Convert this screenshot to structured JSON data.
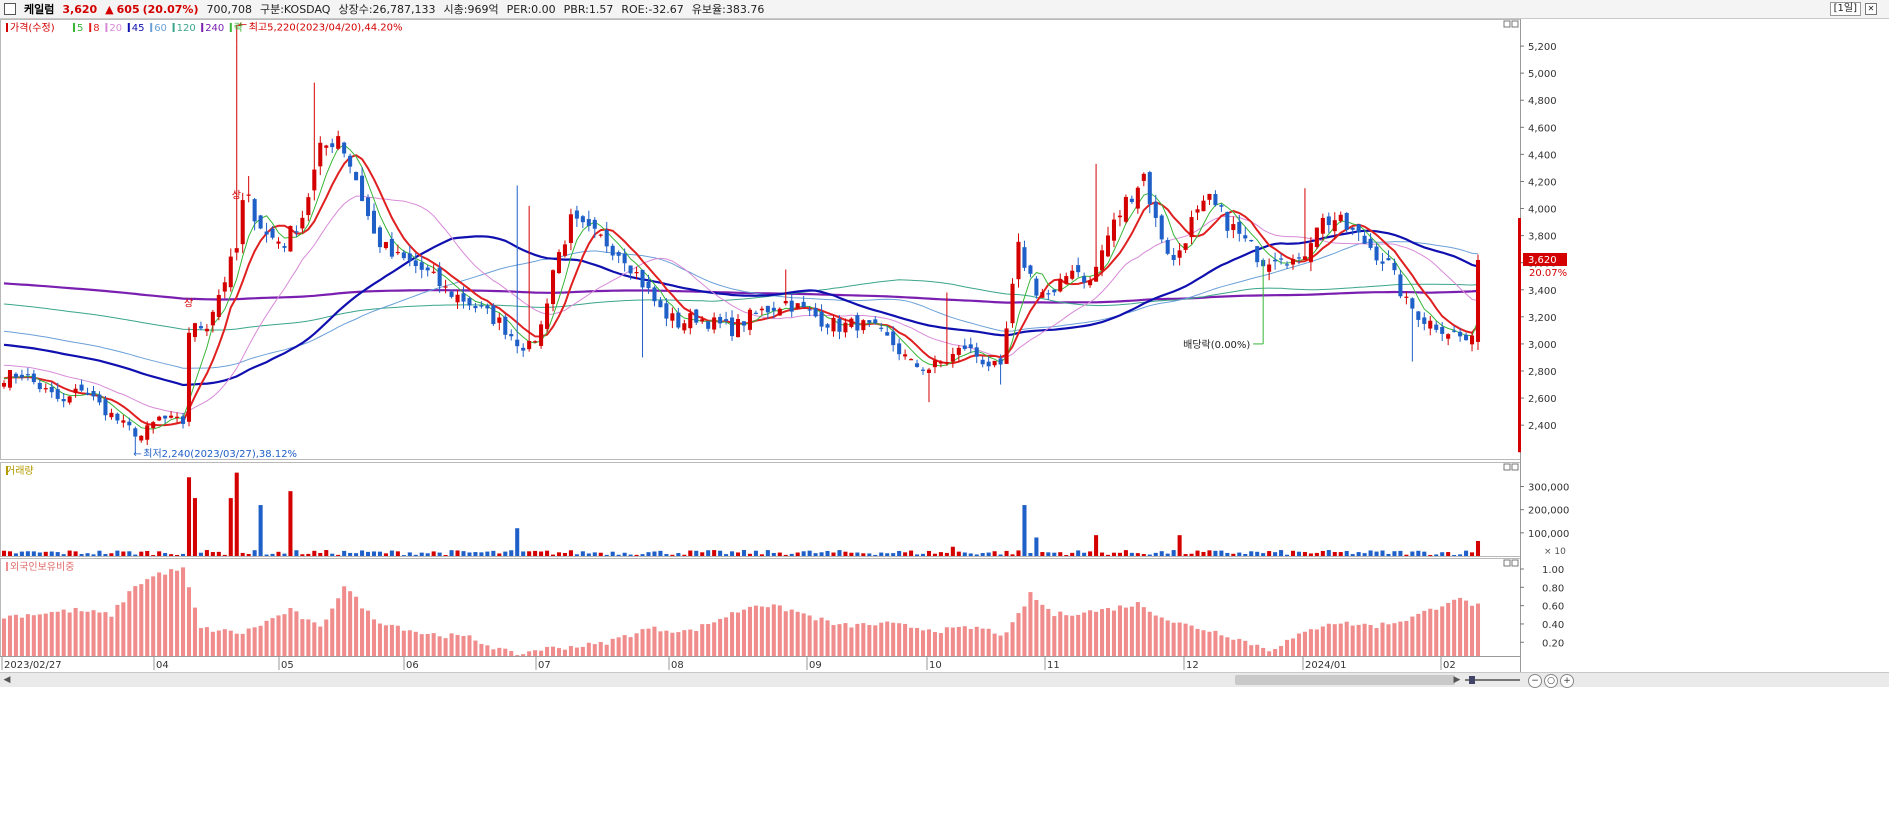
{
  "header": {
    "name": "케일럼",
    "price": "3,620",
    "change_arrow": "▲",
    "change": "605",
    "change_pct": "(20.07%)",
    "volume": "700,708",
    "market": "구분:KOSDAQ",
    "shares": "상장수:26,787,133",
    "mcap": "시총:969억",
    "per": "PER:0.00",
    "pbr": "PBR:1.57",
    "roe": "ROE:-32.67",
    "float_ratio": "유보율:383.76",
    "period": "[1일]",
    "close_icon": "x-icon"
  },
  "colors": {
    "up": "#d40000",
    "down": "#1f5fc8",
    "ma5": "#36b536",
    "ma8": "#e02020",
    "ma20": "#d88ad8",
    "ma45": "#1010b0",
    "ma60": "#6aa0d8",
    "ma120": "#3aa58a",
    "ma240": "#7a1fb0",
    "foreign": "#f08c8c"
  },
  "price_panel": {
    "legend": [
      {
        "label": "가격(수정)",
        "color": "#d40000"
      },
      {
        "label": "5",
        "color": "#36b536"
      },
      {
        "label": "8",
        "color": "#e02020"
      },
      {
        "label": "20",
        "color": "#d88ad8"
      },
      {
        "label": "45",
        "color": "#1010b0"
      },
      {
        "label": "60",
        "color": "#6aa0d8"
      },
      {
        "label": "120",
        "color": "#3aa58a"
      },
      {
        "label": "240",
        "color": "#7a1fb0"
      },
      {
        "label": "락",
        "color": "#36b536"
      }
    ],
    "high_note": "최고5,220(2023/04/20),44.20%",
    "low_note": "최저2,240(2023/03/27),38.12%",
    "dividend_note": "배당락(0.00%)",
    "upper_limit_mark": "상",
    "price_tag": "3,620",
    "pct_tag": "20.07%"
  },
  "volume_panel": {
    "legend": "거래량",
    "unit": "× 10"
  },
  "foreign_panel": {
    "legend": "외국인보유비중"
  },
  "chart_data": {
    "type": "candlestick",
    "x_labels": [
      "2023/02/27",
      "04",
      "05",
      "06",
      "07",
      "08",
      "09",
      "10",
      "11",
      "12",
      "2024/01",
      "02"
    ],
    "price_ticks": [
      2400,
      2600,
      2800,
      3000,
      3200,
      3400,
      3600,
      3800,
      4000,
      4200,
      4400,
      4600,
      4800,
      5000,
      5200
    ],
    "price_ticks_text": [
      "2,400",
      "2,600",
      "2,800",
      "3,000",
      "3,200",
      "3,400",
      "3,600",
      "3,800",
      "4,000",
      "4,200",
      "4,400",
      "4,600",
      "4,800",
      "5,000",
      "5,200"
    ],
    "price_ylim": [
      2150,
      5400
    ],
    "volume_ticks": [
      100000,
      200000,
      300000
    ],
    "volume_ticks_text": [
      "100,000",
      "200,000",
      "300,000"
    ],
    "volume_ylim": [
      0,
      380000
    ],
    "foreign_ticks": [
      0.2,
      0.4,
      0.6,
      0.8,
      1.0
    ],
    "foreign_ticks_text": [
      "0.20",
      "0.40",
      "0.60",
      "0.80",
      "1.00"
    ],
    "foreign_ylim": [
      0.05,
      1.12
    ],
    "close_anchors": [
      [
        0,
        2760
      ],
      [
        3,
        2780
      ],
      [
        7,
        2650
      ],
      [
        10,
        2560
      ],
      [
        13,
        2680
      ],
      [
        16,
        2550
      ],
      [
        20,
        2400
      ],
      [
        23,
        2320
      ],
      [
        26,
        2450
      ],
      [
        30,
        2420
      ],
      [
        31,
        3100
      ],
      [
        34,
        3150
      ],
      [
        37,
        3480
      ],
      [
        39,
        3700
      ],
      [
        40,
        4030
      ],
      [
        41,
        4050
      ],
      [
        44,
        3800
      ],
      [
        47,
        3750
      ],
      [
        50,
        3950
      ],
      [
        53,
        4420
      ],
      [
        56,
        4550
      ],
      [
        59,
        4220
      ],
      [
        62,
        3800
      ],
      [
        65,
        3650
      ],
      [
        68,
        3600
      ],
      [
        71,
        3520
      ],
      [
        74,
        3400
      ],
      [
        77,
        3330
      ],
      [
        80,
        3250
      ],
      [
        83,
        3160
      ],
      [
        86,
        3020
      ],
      [
        88,
        2970
      ],
      [
        90,
        3130
      ],
      [
        92,
        3550
      ],
      [
        95,
        3900
      ],
      [
        98,
        3820
      ],
      [
        101,
        3750
      ],
      [
        104,
        3650
      ],
      [
        107,
        3450
      ],
      [
        110,
        3250
      ],
      [
        113,
        3150
      ],
      [
        116,
        3200
      ],
      [
        119,
        3150
      ],
      [
        122,
        3110
      ],
      [
        125,
        3200
      ],
      [
        128,
        3260
      ],
      [
        131,
        3310
      ],
      [
        134,
        3250
      ],
      [
        137,
        3180
      ],
      [
        140,
        3130
      ],
      [
        143,
        3150
      ],
      [
        146,
        3100
      ],
      [
        149,
        3000
      ],
      [
        152,
        2850
      ],
      [
        155,
        2820
      ],
      [
        158,
        2880
      ],
      [
        161,
        2980
      ],
      [
        164,
        2880
      ],
      [
        167,
        2800
      ],
      [
        170,
        3700
      ],
      [
        173,
        3400
      ],
      [
        176,
        3350
      ],
      [
        179,
        3580
      ],
      [
        182,
        3450
      ],
      [
        185,
        3800
      ],
      [
        188,
        4050
      ],
      [
        191,
        4250
      ],
      [
        193,
        3900
      ],
      [
        196,
        3600
      ],
      [
        199,
        3900
      ],
      [
        202,
        4050
      ],
      [
        205,
        3900
      ],
      [
        208,
        3750
      ],
      [
        211,
        3620
      ],
      [
        214,
        3680
      ],
      [
        217,
        3580
      ],
      [
        220,
        3900
      ],
      [
        223,
        3920
      ],
      [
        226,
        3820
      ],
      [
        229,
        3720
      ],
      [
        232,
        3580
      ],
      [
        235,
        3300
      ],
      [
        238,
        3180
      ],
      [
        241,
        3120
      ],
      [
        244,
        3050
      ],
      [
        246,
        3010
      ],
      [
        247,
        3620
      ]
    ],
    "upper_shadows": [
      [
        39,
        5220
      ],
      [
        41,
        4240
      ],
      [
        52,
        4930
      ],
      [
        86,
        4170
      ],
      [
        88,
        4020
      ],
      [
        131,
        3550
      ],
      [
        158,
        3380
      ],
      [
        183,
        4330
      ],
      [
        218,
        4150
      ],
      [
        247,
        3660
      ]
    ],
    "lower_shadows": [
      [
        22,
        2240
      ],
      [
        86,
        2930
      ],
      [
        107,
        2900
      ],
      [
        155,
        2570
      ],
      [
        167,
        2700
      ],
      [
        236,
        2870
      ]
    ],
    "volume_spikes": [
      [
        31,
        340000
      ],
      [
        32,
        250000
      ],
      [
        38,
        250000
      ],
      [
        39,
        360000
      ],
      [
        43,
        220000
      ],
      [
        48,
        280000
      ],
      [
        86,
        120000
      ],
      [
        159,
        40000
      ],
      [
        171,
        220000
      ],
      [
        173,
        80000
      ],
      [
        183,
        90000
      ],
      [
        197,
        90000
      ],
      [
        247,
        65000
      ]
    ],
    "foreign_anchors": [
      [
        0,
        0.48
      ],
      [
        12,
        0.55
      ],
      [
        18,
        0.5
      ],
      [
        22,
        0.82
      ],
      [
        26,
        0.95
      ],
      [
        30,
        1.0
      ],
      [
        33,
        0.35
      ],
      [
        40,
        0.3
      ],
      [
        48,
        0.55
      ],
      [
        53,
        0.35
      ],
      [
        57,
        0.82
      ],
      [
        62,
        0.45
      ],
      [
        70,
        0.3
      ],
      [
        78,
        0.25
      ],
      [
        86,
        0.05
      ],
      [
        89,
        0.12
      ],
      [
        100,
        0.18
      ],
      [
        108,
        0.35
      ],
      [
        115,
        0.32
      ],
      [
        126,
        0.62
      ],
      [
        132,
        0.55
      ],
      [
        140,
        0.38
      ],
      [
        148,
        0.4
      ],
      [
        157,
        0.33
      ],
      [
        163,
        0.36
      ],
      [
        168,
        0.28
      ],
      [
        172,
        0.72
      ],
      [
        176,
        0.5
      ],
      [
        184,
        0.55
      ],
      [
        190,
        0.62
      ],
      [
        196,
        0.42
      ],
      [
        204,
        0.3
      ],
      [
        212,
        0.12
      ],
      [
        218,
        0.3
      ],
      [
        222,
        0.42
      ],
      [
        230,
        0.38
      ],
      [
        235,
        0.45
      ],
      [
        239,
        0.55
      ],
      [
        243,
        0.68
      ],
      [
        247,
        0.6
      ]
    ]
  }
}
